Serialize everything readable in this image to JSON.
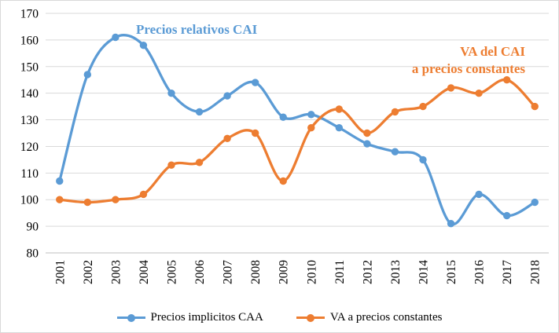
{
  "chart_data": {
    "type": "line",
    "title": "",
    "categories": [
      "2001",
      "2002",
      "2003",
      "2004",
      "2005",
      "2006",
      "2007",
      "2008",
      "2009",
      "2010",
      "2011",
      "2012",
      "2013",
      "2014",
      "2015",
      "2016",
      "2017",
      "2018"
    ],
    "series": [
      {
        "name": "Precios implicitos CAA",
        "color": "#5B9BD5",
        "values": [
          107,
          147,
          161,
          158,
          140,
          133,
          139,
          144,
          131,
          132,
          127,
          121,
          118,
          115,
          91,
          102,
          94,
          99
        ]
      },
      {
        "name": "VA a precios constantes",
        "color": "#ED7D31",
        "values": [
          100,
          99,
          100,
          102,
          113,
          114,
          123,
          125,
          107,
          127,
          134,
          125,
          133,
          135,
          142,
          140,
          145,
          135
        ]
      }
    ],
    "xlabel": "",
    "ylabel": "",
    "ylim": [
      80,
      170
    ],
    "ytick_step": 10,
    "yticks": [
      80,
      90,
      100,
      110,
      120,
      130,
      140,
      150,
      160,
      170
    ],
    "grid": true,
    "line_style": "smooth",
    "marker": "circle",
    "legend_position": "bottom",
    "x_tick_rotation": -90,
    "annotations": [
      {
        "text": "Precios relativos CAI",
        "color": "#5B9BD5",
        "position": "top-left"
      },
      {
        "lines": [
          "VA del CAI",
          "a precios constantes"
        ],
        "color": "#ED7D31",
        "position": "right"
      }
    ],
    "colors": {
      "grid": "#d9d9d9",
      "axis": "#bfbfbf",
      "text": "#000000",
      "background": "#ffffff"
    }
  }
}
